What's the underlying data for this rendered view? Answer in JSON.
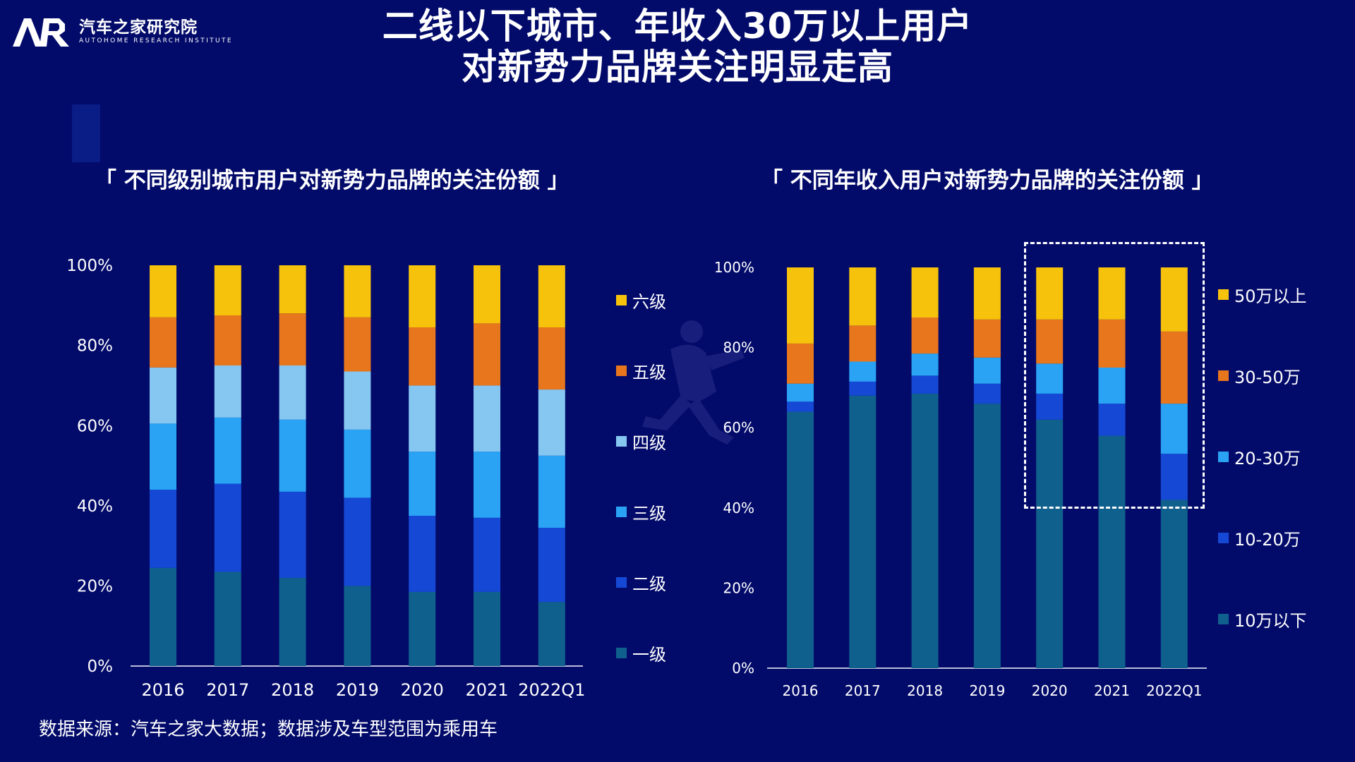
{
  "header": {
    "logo_cn": "汽车之家研究院",
    "logo_en": "AUTOHOME RESEARCH INSTITUTE",
    "title_line1": "二线以下城市、年收入30万以上用户",
    "title_line2": "对新势力品牌关注明显走高"
  },
  "footer": {
    "source": "数据来源：汽车之家大数据；数据涉及车型范围为乘用车"
  },
  "colors": {
    "background": "#030b6a",
    "s1": "#10608e",
    "s2": "#1549d5",
    "s3": "#2aa3f5",
    "s4": "#86c7f2",
    "s5": "#e8761c",
    "s6": "#f6c20b"
  },
  "chart_data": [
    {
      "type": "bar",
      "stacked": true,
      "title": "「 不同级别城市用户对新势力品牌的关注份额 」",
      "categories": [
        "2016",
        "2017",
        "2018",
        "2019",
        "2020",
        "2021",
        "2022Q1"
      ],
      "ylim": [
        0,
        100
      ],
      "yticks": [
        "0%",
        "20%",
        "40%",
        "60%",
        "80%",
        "100%"
      ],
      "legend_position": "right",
      "series": [
        {
          "name": "一级",
          "values": [
            24.5,
            23.5,
            22,
            20,
            18.5,
            18.5,
            16
          ]
        },
        {
          "name": "二级",
          "values": [
            19.5,
            22,
            21.5,
            22,
            19,
            18.5,
            18.5
          ]
        },
        {
          "name": "三级",
          "values": [
            16.5,
            16.5,
            18,
            17,
            16,
            16.5,
            18
          ]
        },
        {
          "name": "四级",
          "values": [
            14,
            13,
            13.5,
            14.5,
            16.5,
            16.5,
            16.5
          ]
        },
        {
          "name": "五级",
          "values": [
            12.5,
            12.5,
            13,
            13.5,
            14.5,
            15.5,
            15.5
          ]
        },
        {
          "name": "六级",
          "values": [
            13,
            12.5,
            12,
            13,
            15.5,
            14.5,
            15.5
          ]
        }
      ]
    },
    {
      "type": "bar",
      "stacked": true,
      "title": "「 不同年收入用户对新势力品牌的关注份额 」",
      "categories": [
        "2016",
        "2017",
        "2018",
        "2019",
        "2020",
        "2021",
        "2022Q1"
      ],
      "ylim": [
        0,
        100
      ],
      "yticks": [
        "0%",
        "20%",
        "40%",
        "60%",
        "80%",
        "100%"
      ],
      "legend_position": "right",
      "highlight_categories": [
        "2020",
        "2021",
        "2022Q1"
      ],
      "series": [
        {
          "name": "10万以下",
          "values": [
            64,
            68,
            68.5,
            66,
            62,
            58,
            42
          ]
        },
        {
          "name": "10-20万",
          "values": [
            2.5,
            3.5,
            4.5,
            5,
            6.5,
            8,
            11.5
          ]
        },
        {
          "name": "20-30万",
          "values": [
            4.5,
            5,
            5.5,
            6.5,
            7.5,
            9,
            12.5
          ]
        },
        {
          "name": "30-50万",
          "values": [
            10,
            9,
            9,
            9.5,
            11,
            12,
            18
          ]
        },
        {
          "name": "50万以上",
          "values": [
            19,
            14.5,
            12.5,
            13,
            13,
            13,
            16
          ]
        }
      ]
    }
  ]
}
